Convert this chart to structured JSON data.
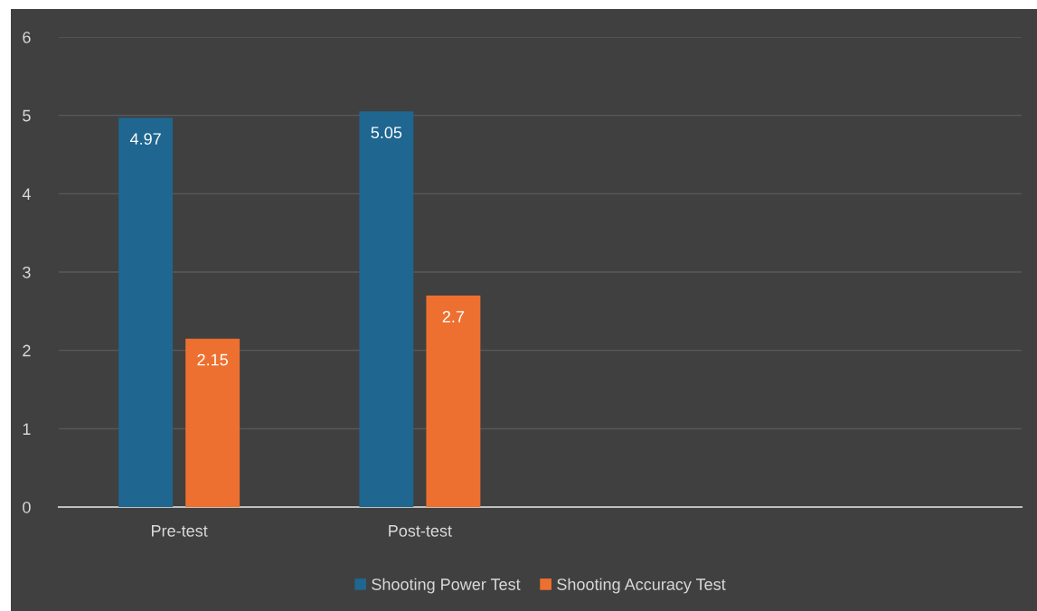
{
  "chart_data": {
    "type": "bar",
    "categories": [
      "Pre-test",
      "Post-test",
      null,
      null
    ],
    "series": [
      {
        "name": "Shooting Power Test",
        "color": "#1f6690",
        "values": [
          4.97,
          5.05,
          null,
          null
        ]
      },
      {
        "name": "Shooting Accuracy Test",
        "color": "#ee7030",
        "values": [
          2.15,
          2.7,
          null,
          null
        ]
      }
    ],
    "ylim": [
      0,
      6
    ],
    "yticks": [
      0,
      1,
      2,
      3,
      4,
      5,
      6
    ],
    "grid": "y",
    "legend": "bottom",
    "data_labels": true
  }
}
